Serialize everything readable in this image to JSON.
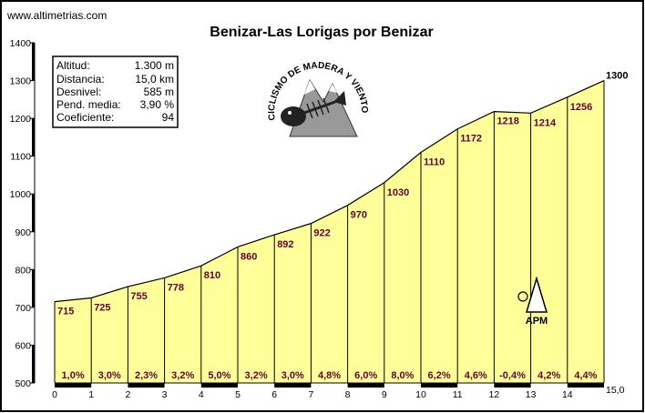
{
  "site": "www.altimetrias.com",
  "chart_data": {
    "type": "area",
    "title": "Benizar-Las Lorigas por Benizar",
    "x": [
      0,
      1,
      2,
      3,
      4,
      5,
      6,
      7,
      8,
      9,
      10,
      11,
      12,
      13,
      14,
      15
    ],
    "y": [
      715,
      725,
      755,
      778,
      810,
      860,
      892,
      922,
      970,
      1030,
      1110,
      1172,
      1218,
      1214,
      1256,
      1300
    ],
    "elevation_labels": [
      "715",
      "725",
      "755",
      "778",
      "810",
      "860",
      "892",
      "922",
      "970",
      "1030",
      "1110",
      "1172",
      "1218",
      "1214",
      "1256"
    ],
    "summit_label": "1300",
    "gradients": [
      "1,0%",
      "3,0%",
      "2,3%",
      "3,2%",
      "5,0%",
      "3,2%",
      "3,0%",
      "4,8%",
      "6,0%",
      "8,0%",
      "6,2%",
      "4,6%",
      "-0,4%",
      "4,2%",
      "4,4%"
    ],
    "x_tick_labels": [
      "0",
      "1",
      "2",
      "3",
      "4",
      "5",
      "6",
      "7",
      "8",
      "9",
      "10",
      "11",
      "12",
      "13",
      "14"
    ],
    "x_end_label": "15,0",
    "y_tick_labels": [
      "500",
      "600",
      "700",
      "800",
      "900",
      "1000",
      "1100",
      "1200",
      "1300",
      "1400"
    ],
    "xlim": [
      0,
      15
    ],
    "ylim": [
      500,
      1400
    ],
    "area_color": "#ffff99",
    "elevation_label_color": "#660033"
  },
  "stats": [
    {
      "label": "Altitud:",
      "value": "1.300 m"
    },
    {
      "label": "Distancia:",
      "value": "15,0 km"
    },
    {
      "label": "Desnivel:",
      "value": "585 m"
    },
    {
      "label": "Pend. media:",
      "value": "3,90 %"
    },
    {
      "label": "Coeficiente:",
      "value": "94"
    }
  ],
  "logo": {
    "text": "CICLISMO DE MADERA Y VIENTO"
  },
  "apm_label": "APM"
}
